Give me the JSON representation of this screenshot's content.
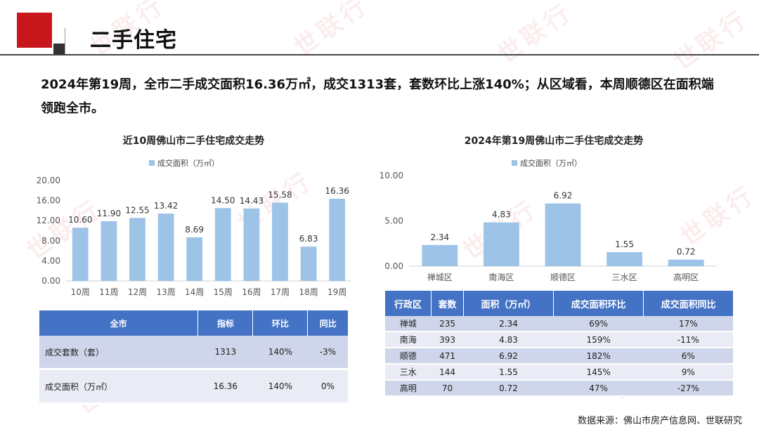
{
  "header": {
    "title": "二手住宅"
  },
  "summary": {
    "line1": "2024年第19周，全市二手成交面积16.36万㎡，成交1313套，套数环比上涨140%；从区域看，本周顺德区在面积端",
    "line2": "领跑全市。"
  },
  "watermark": "世联行",
  "colors": {
    "accent": "#c8161d",
    "bar": "#9dc3e6",
    "table_header": "#4472c4"
  },
  "chart_data": [
    {
      "type": "bar",
      "title": "近10周佛山市二手住宅成交走势",
      "legend": "成交面积（万㎡）",
      "categories": [
        "10周",
        "11周",
        "12周",
        "13周",
        "14周",
        "15周",
        "16周",
        "17周",
        "18周",
        "19周"
      ],
      "values": [
        10.6,
        11.9,
        12.55,
        13.42,
        8.69,
        14.5,
        14.43,
        15.58,
        6.83,
        16.36
      ],
      "value_labels": [
        "10.60",
        "11.90",
        "12.55",
        "13.42",
        "8.69",
        "14.50",
        "14.43",
        "15.58",
        "6.83",
        "16.36"
      ],
      "yticks": [
        "0.00",
        "4.00",
        "8.00",
        "12.00",
        "16.00",
        "20.00"
      ],
      "ylim": [
        0,
        20
      ],
      "xlabel": "",
      "ylabel": ""
    },
    {
      "type": "bar",
      "title": "2024年第19周佛山市二手住宅成交走势",
      "legend": "成交面积（万㎡）",
      "categories": [
        "禅城区",
        "南海区",
        "顺德区",
        "三水区",
        "高明区"
      ],
      "values": [
        2.34,
        4.83,
        6.92,
        1.55,
        0.72
      ],
      "value_labels": [
        "2.34",
        "4.83",
        "6.92",
        "1.55",
        "0.72"
      ],
      "yticks": [
        "0.00",
        "5.00",
        "10.00"
      ],
      "ylim": [
        0,
        10
      ],
      "xlabel": "",
      "ylabel": ""
    }
  ],
  "table1": {
    "headers": [
      "全市",
      "指标",
      "环比",
      "同比"
    ],
    "rows": [
      [
        "成交套数（套）",
        "1313",
        "140%",
        "-3%"
      ],
      [
        "成交面积（万㎡）",
        "16.36",
        "140%",
        "0%"
      ]
    ]
  },
  "table2": {
    "headers": [
      "行政区",
      "套数",
      "面积（万㎡）",
      "成交面积环比",
      "成交面积同比"
    ],
    "rows": [
      [
        "禅城",
        "235",
        "2.34",
        "69%",
        "17%"
      ],
      [
        "南海",
        "393",
        "4.83",
        "159%",
        "-11%"
      ],
      [
        "顺德",
        "471",
        "6.92",
        "182%",
        "6%"
      ],
      [
        "三水",
        "144",
        "1.55",
        "145%",
        "9%"
      ],
      [
        "高明",
        "70",
        "0.72",
        "47%",
        "-27%"
      ]
    ]
  },
  "source": "数据来源：佛山市房产信息网、世联研究"
}
